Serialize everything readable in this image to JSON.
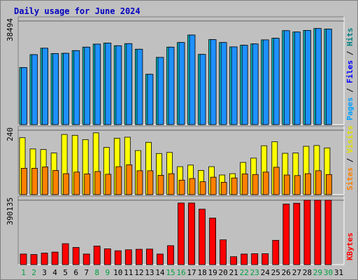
{
  "chart_data": {
    "type": "bar",
    "title": "Daily usage for June 2024",
    "categories": [
      "1",
      "2",
      "3",
      "4",
      "5",
      "6",
      "7",
      "8",
      "9",
      "10",
      "11",
      "12",
      "13",
      "14",
      "15",
      "16",
      "17",
      "18",
      "19",
      "20",
      "21",
      "22",
      "23",
      "24",
      "25",
      "26",
      "27",
      "28",
      "29",
      "30",
      "31"
    ],
    "weekend_days": [
      "1",
      "2",
      "8",
      "9",
      "15",
      "16",
      "22",
      "23",
      "29",
      "30"
    ],
    "panels": [
      {
        "id": "pages-files-hits",
        "axis_max_label": "38494",
        "ylim": [
          0,
          38494
        ],
        "side_labels": [
          {
            "text": "Pages",
            "color": "#00A0FF"
          },
          {
            "text": "Files",
            "color": "#0000FF"
          },
          {
            "text": "Hits",
            "color": "#008080"
          }
        ],
        "series": [
          {
            "name": "Hits",
            "color": "#00BFBF",
            "values": [
              21200,
              26000,
              28400,
              26400,
              26500,
              27500,
              28800,
              29900,
              30300,
              29300,
              30100,
              28000,
              18700,
              25000,
              28800,
              30500,
              33300,
              26100,
              31600,
              30500,
              28900,
              29500,
              30000,
              31500,
              32100,
              34900,
              34400,
              35000,
              35700,
              35500,
              null
            ]
          },
          {
            "name": "Files",
            "color": "#1E90FF",
            "values": [
              21200,
              26000,
              28400,
              26400,
              26500,
              27500,
              28800,
              29900,
              30300,
              29300,
              30100,
              28000,
              18700,
              25000,
              28800,
              30500,
              33300,
              26100,
              31600,
              30500,
              28900,
              29500,
              30000,
              31500,
              32100,
              34900,
              34400,
              35000,
              35700,
              35500,
              null
            ]
          }
        ]
      },
      {
        "id": "visits-sites",
        "axis_max_label": "240",
        "ylim": [
          0,
          240
        ],
        "side_labels": [
          {
            "text": "Sites",
            "color": "#FF8000"
          },
          {
            "text": "Visits",
            "color": "#E0E000"
          }
        ],
        "series": [
          {
            "name": "Visits",
            "color": "#FFFF00",
            "values": [
              212,
              170,
              168,
              155,
              224,
              221,
              205,
              230,
              176,
              210,
              214,
              164,
              195,
              153,
              157,
              104,
              110,
              90,
              104,
              73,
              78,
              120,
              136,
              182,
              197,
              154,
              155,
              180,
              183,
              174,
              null
            ]
          },
          {
            "name": "Sites",
            "color": "#FF8000",
            "values": [
              98,
              98,
              103,
              90,
              78,
              84,
              77,
              86,
              76,
              104,
              111,
              89,
              89,
              72,
              78,
              54,
              60,
              48,
              65,
              46,
              62,
              77,
              75,
              84,
              102,
              73,
              71,
              78,
              89,
              75,
              null
            ]
          }
        ]
      },
      {
        "id": "kbytes",
        "axis_max_label": "390135",
        "ylim": [
          0,
          390135
        ],
        "side_labels": [
          {
            "text": "KBytes",
            "color": "#FF0000"
          }
        ],
        "series": [
          {
            "name": "KBytes",
            "color": "#FF0000",
            "values": [
              64000,
              61000,
              70000,
              76000,
              127000,
              104000,
              64000,
              113000,
              96000,
              84000,
              90000,
              93000,
              94000,
              64000,
              115000,
              373000,
              373000,
              336000,
              282000,
              150000,
              48000,
              64000,
              66000,
              66000,
              147000,
              367000,
              372000,
              390000,
              390000,
              390000,
              null
            ]
          }
        ]
      }
    ]
  }
}
